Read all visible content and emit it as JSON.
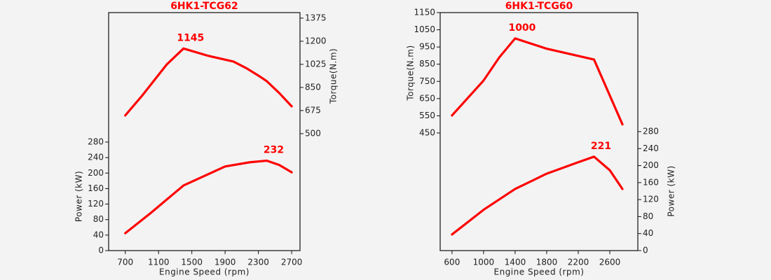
{
  "chart_data": [
    {
      "type": "line",
      "title": "6HK1-TCG62",
      "xlabel": "Engine Speed (rpm)",
      "ylabel": "Power (kW)",
      "y2label": "Torque(N.m)",
      "xlim": [
        500,
        2800
      ],
      "xticks": [
        700,
        1100,
        1500,
        1900,
        2300,
        2700
      ],
      "ylim": [
        0,
        614
      ],
      "yticks": [
        0,
        40,
        80,
        120,
        160,
        200,
        240,
        280
      ],
      "y2lim": [
        -386,
        1417
      ],
      "y2ticks": [
        500,
        675,
        850,
        1025,
        1200,
        1375
      ],
      "series": [
        {
          "axis": "y2",
          "color": "#ff0000",
          "x": [
            700,
            900,
            1200,
            1400,
            1700,
            2000,
            2150,
            2300,
            2400,
            2550,
            2700
          ],
          "values": [
            638,
            786,
            1025,
            1145,
            1089,
            1046,
            998,
            940,
            898,
            808,
            707
          ]
        },
        {
          "color": "#ff0000",
          "x": [
            700,
            1000,
            1400,
            1900,
            2200,
            2400,
            2550,
            2700
          ],
          "values": [
            45,
            96,
            168,
            217,
            228,
            232,
            221,
            202
          ]
        }
      ],
      "annotations": [
        {
          "text": "1145",
          "x": 1400,
          "y": 1145,
          "axis": "y2"
        },
        {
          "text": "232",
          "x": 2400,
          "y": 232
        }
      ]
    },
    {
      "type": "line",
      "title": "6HK1-TCG60",
      "xlabel": "Engine Speed (rpm)",
      "ylabel": "Torque(N.m)",
      "y2label": "Power (kW)",
      "xlim": [
        450,
        2955
      ],
      "xticks": [
        600,
        1000,
        1400,
        1800,
        2200,
        2600
      ],
      "ylim": [
        -234,
        1150
      ],
      "yticks": [
        450,
        550,
        650,
        750,
        850,
        950,
        1050,
        1150
      ],
      "y2lim": [
        0,
        560
      ],
      "y2ticks": [
        0,
        40,
        80,
        120,
        160,
        200,
        240,
        280
      ],
      "series": [
        {
          "color": "#ff0000",
          "x": [
            600,
            1000,
            1200,
            1400,
            1800,
            2400,
            2760
          ],
          "values": [
            552,
            755,
            890,
            1000,
            940,
            877,
            500
          ]
        },
        {
          "axis": "y2",
          "color": "#ff0000",
          "x": [
            600,
            1000,
            1400,
            1800,
            2200,
            2400,
            2600,
            2760
          ],
          "values": [
            38,
            96,
            145,
            181,
            208,
            221,
            189,
            145
          ]
        }
      ],
      "annotations": [
        {
          "text": "1000",
          "x": 1400,
          "y": 1000
        },
        {
          "text": "221",
          "x": 2400,
          "y": 221,
          "axis": "y2"
        }
      ]
    }
  ]
}
